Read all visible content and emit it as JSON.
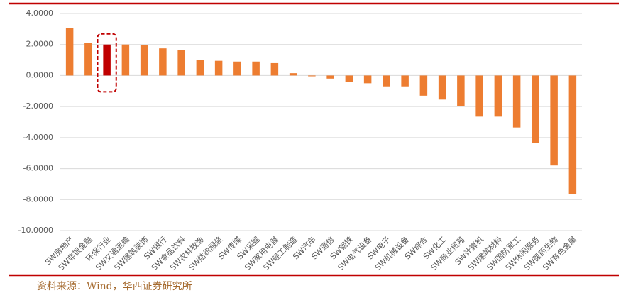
{
  "chart_data": {
    "type": "bar",
    "categories": [
      "SW房地产",
      "SW非银金融",
      "环保行业",
      "SW交通运输",
      "SW建筑装饰",
      "SW银行",
      "SW食品饮料",
      "SW农林牧渔",
      "SW纺织服装",
      "SW传媒",
      "SW采掘",
      "SW家用电器",
      "SW轻工制造",
      "SW汽车",
      "SW通信",
      "SW钢铁",
      "SW电气设备",
      "SW电子",
      "SW机械设备",
      "SW综合",
      "SW化工",
      "SW商业贸易",
      "SW计算机",
      "SW建筑材料",
      "SW国防军工",
      "SW休闲服务",
      "SW医药生物",
      "SW有色金属"
    ],
    "values": [
      3.05,
      2.1,
      2.0,
      2.0,
      1.95,
      1.75,
      1.65,
      1.0,
      0.95,
      0.9,
      0.9,
      0.8,
      0.15,
      -0.05,
      -0.2,
      -0.4,
      -0.5,
      -0.7,
      -0.7,
      -1.3,
      -1.55,
      -1.95,
      -2.65,
      -2.65,
      -3.35,
      -4.35,
      -5.8,
      -7.65
    ],
    "colors": [
      "#ed7d31",
      "#ed7d31",
      "#c00000",
      "#ed7d31",
      "#ed7d31",
      "#ed7d31",
      "#ed7d31",
      "#ed7d31",
      "#ed7d31",
      "#ed7d31",
      "#ed7d31",
      "#ed7d31",
      "#ed7d31",
      "#ed7d31",
      "#ed7d31",
      "#ed7d31",
      "#ed7d31",
      "#ed7d31",
      "#ed7d31",
      "#ed7d31",
      "#ed7d31",
      "#ed7d31",
      "#ed7d31",
      "#ed7d31",
      "#ed7d31",
      "#ed7d31",
      "#ed7d31",
      "#ed7d31"
    ],
    "highlight_color": "#c00000",
    "ylim": [
      -10,
      4
    ],
    "yticks": [
      {
        "value": -10,
        "label": "-10.0000"
      },
      {
        "value": -8,
        "label": "-8.0000"
      },
      {
        "value": -6,
        "label": "-6.0000"
      },
      {
        "value": -4,
        "label": "-4.0000"
      },
      {
        "value": -2,
        "label": "-2.0000"
      },
      {
        "value": 0,
        "label": "0.0000"
      },
      {
        "value": 2,
        "label": "2.0000"
      },
      {
        "value": 4,
        "label": "4.0000"
      }
    ],
    "grid": true,
    "source": "资料来源：Wind，华西证券研究所"
  }
}
